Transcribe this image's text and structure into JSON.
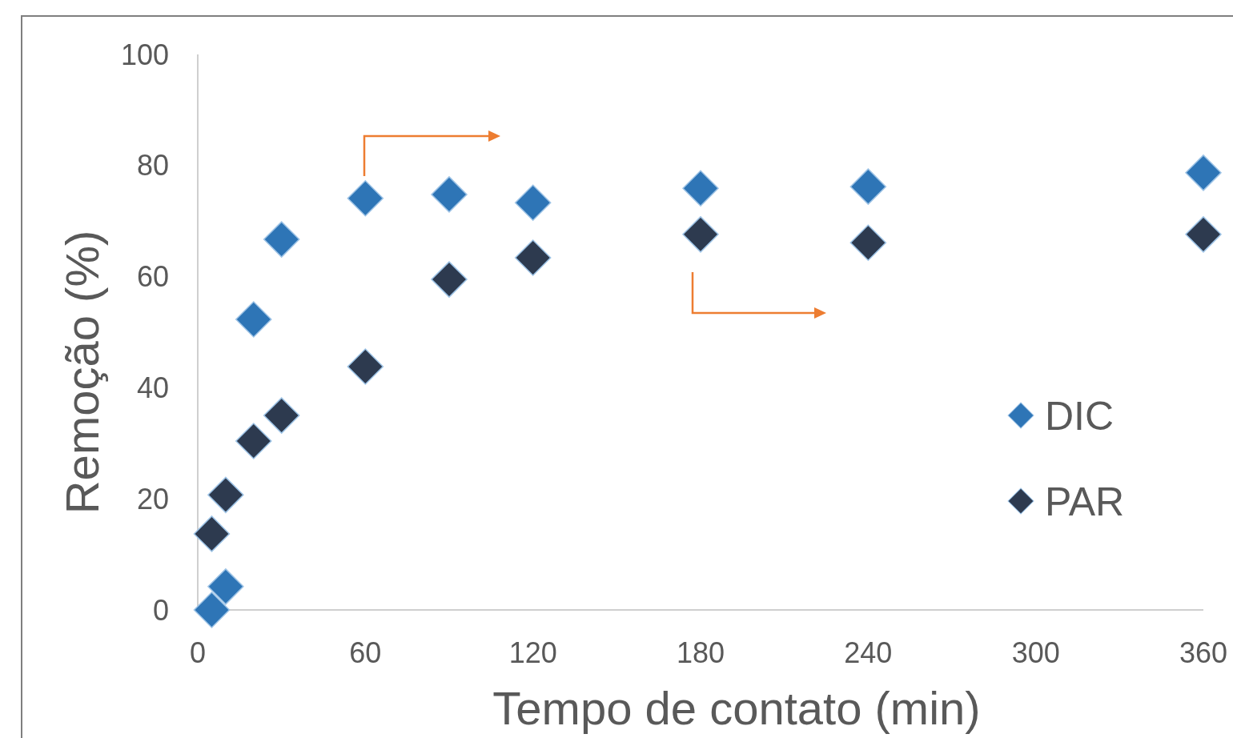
{
  "chart_data": {
    "type": "scatter",
    "xlabel": "Tempo de contato (min)",
    "ylabel": "Remoção (%)",
    "x": [
      5,
      10,
      20,
      30,
      60,
      90,
      120,
      180,
      240,
      360
    ],
    "series": [
      {
        "name": "DIC",
        "color": "#2e75b6",
        "values": [
          0,
          4.2,
          52.3,
          66.7,
          74.1,
          74.8,
          73.3,
          75.9,
          76.2,
          78.7
        ]
      },
      {
        "name": "PAR",
        "color": "#2d3a4f",
        "values": [
          13.7,
          20.7,
          30.4,
          35.0,
          43.8,
          59.5,
          63.4,
          67.6,
          66.1,
          67.6
        ]
      }
    ],
    "xlim": [
      0,
      360
    ],
    "xticks": [
      0,
      60,
      120,
      180,
      240,
      300,
      360
    ],
    "ylim": [
      0,
      100
    ],
    "yticks": [
      0,
      20,
      40,
      60,
      80,
      100
    ],
    "marker": "diamond",
    "legend": "right",
    "grid": false
  }
}
